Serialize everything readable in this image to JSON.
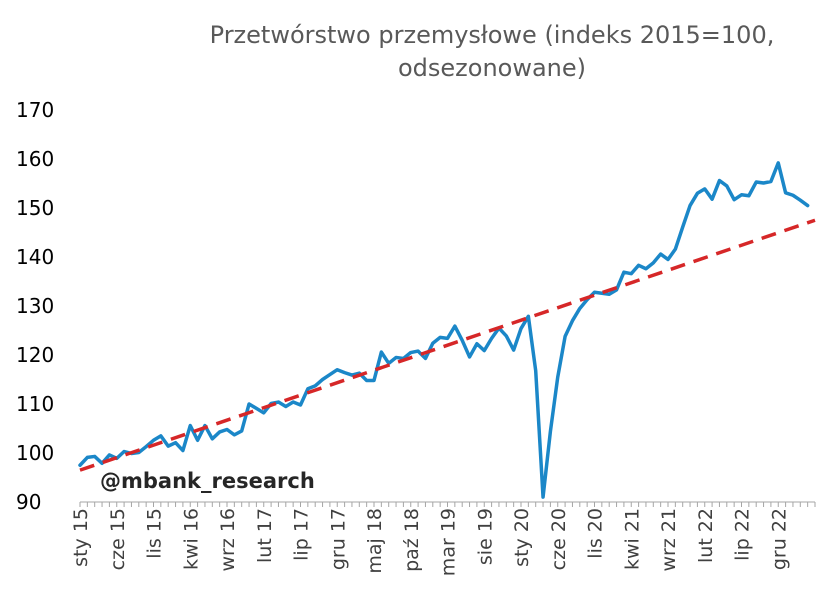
{
  "chart_data": {
    "type": "line",
    "title_lines": [
      "Przetwórstwo przemysłowe (indeks 2015=100,",
      "odsezonowane)"
    ],
    "watermark": "@mbank_research",
    "xlabel": "",
    "ylabel": "",
    "ylim": [
      90,
      170
    ],
    "y_ticks": [
      90,
      100,
      110,
      120,
      130,
      140,
      150,
      160,
      170
    ],
    "x_start": "2015-01",
    "x_end": "2023-05",
    "x_ticks": [
      {
        "label": "sty 15",
        "month": "2015-01"
      },
      {
        "label": "cze 15",
        "month": "2015-06"
      },
      {
        "label": "lis 15",
        "month": "2015-11"
      },
      {
        "label": "kwi 16",
        "month": "2016-04"
      },
      {
        "label": "wrz 16",
        "month": "2016-09"
      },
      {
        "label": "lut 17",
        "month": "2017-02"
      },
      {
        "label": "lip 17",
        "month": "2017-07"
      },
      {
        "label": "gru 17",
        "month": "2017-12"
      },
      {
        "label": "maj 18",
        "month": "2018-05"
      },
      {
        "label": "paź 18",
        "month": "2018-10"
      },
      {
        "label": "mar 19",
        "month": "2019-03"
      },
      {
        "label": "sie 19",
        "month": "2019-08"
      },
      {
        "label": "sty 20",
        "month": "2020-01"
      },
      {
        "label": "cze 20",
        "month": "2020-06"
      },
      {
        "label": "lis 20",
        "month": "2020-11"
      },
      {
        "label": "kwi 21",
        "month": "2021-04"
      },
      {
        "label": "wrz 21",
        "month": "2021-09"
      },
      {
        "label": "lut 22",
        "month": "2022-02"
      },
      {
        "label": "lip 22",
        "month": "2022-07"
      },
      {
        "label": "gru 22",
        "month": "2022-12"
      }
    ],
    "series": [
      {
        "color": "#1B87C8",
        "style": "solid",
        "values": [
          97.5,
          99.1,
          99.3,
          97.9,
          99.6,
          98.9,
          100.3,
          99.9,
          100.1,
          101.3,
          102.6,
          103.5,
          101.4,
          102.1,
          100.5,
          105.6,
          102.6,
          105.6,
          102.9,
          104.3,
          104.8,
          103.7,
          104.5,
          110.0,
          109.1,
          108.2,
          110.1,
          110.4,
          109.5,
          110.4,
          109.8,
          113.1,
          113.7,
          115.0,
          116.0,
          117.0,
          116.4,
          115.9,
          116.3,
          114.8,
          114.8,
          120.6,
          118.3,
          119.5,
          119.3,
          120.5,
          120.8,
          119.3,
          122.4,
          123.6,
          123.4,
          125.9,
          123.0,
          119.6,
          122.3,
          120.9,
          123.4,
          125.5,
          123.9,
          121.0,
          125.4,
          127.9,
          116.8,
          91.0,
          104.4,
          115.5,
          123.8,
          127.0,
          129.5,
          131.3,
          132.8,
          132.6,
          132.4,
          133.3,
          136.9,
          136.6,
          138.3,
          137.6,
          138.8,
          140.6,
          139.5,
          141.6,
          146.1,
          150.5,
          153.0,
          153.9,
          151.8,
          155.6,
          154.5,
          151.7,
          152.7,
          152.5,
          155.3,
          155.1,
          155.4,
          159.2,
          153.1,
          152.6,
          151.6,
          150.5
        ]
      },
      {
        "color": "#D62728",
        "style": "dashed",
        "values": [
          96.5,
          147.5
        ]
      }
    ],
    "grid": false,
    "legend": "none"
  }
}
